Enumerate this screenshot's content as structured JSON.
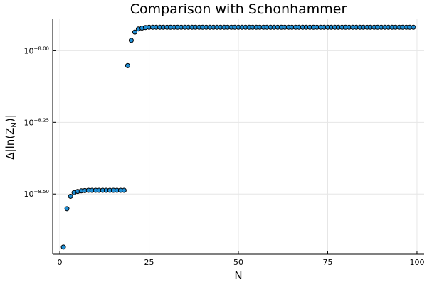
{
  "chart_data": {
    "type": "scatter",
    "title": "Comparison with Schonhammer",
    "xlabel": "N",
    "ylabel": "Δ|ln(Z_N)|",
    "ylabel_main": "Δ|ln(Z",
    "ylabel_sub": "N",
    "ylabel_end": ")|",
    "x_scale": "linear",
    "y_scale": "log10",
    "xlim": [
      -2,
      102
    ],
    "ylim_log10": [
      -8.71,
      -7.89
    ],
    "x_ticks": [
      0,
      25,
      50,
      75,
      100
    ],
    "x_tick_labels": [
      "0",
      "25",
      "50",
      "75",
      "100"
    ],
    "y_ticks_log10": [
      -8.5,
      -8.25,
      -8.0
    ],
    "y_tick_labels": [
      {
        "base": "10",
        "exp": "−8.50"
      },
      {
        "base": "10",
        "exp": "−8.25"
      },
      {
        "base": "10",
        "exp": "−8.00"
      }
    ],
    "grid": true,
    "legend": "none",
    "marker_color": "#1f8fd6",
    "marker_edge_color": "#000000",
    "series": [
      {
        "x": [
          1,
          2,
          3,
          4,
          5,
          6,
          7,
          8,
          9,
          10,
          11,
          12,
          13,
          14,
          15,
          16,
          17,
          18,
          19,
          20,
          21,
          22,
          23,
          24,
          25,
          26,
          27,
          28,
          29,
          30,
          31,
          32,
          33,
          34,
          35,
          36,
          37,
          38,
          39,
          40,
          41,
          42,
          43,
          44,
          45,
          46,
          47,
          48,
          49,
          50,
          51,
          52,
          53,
          54,
          55,
          56,
          57,
          58,
          59,
          60,
          61,
          62,
          63,
          64,
          65,
          66,
          67,
          68,
          69,
          70,
          71,
          72,
          73,
          74,
          75,
          76,
          77,
          78,
          79,
          80,
          81,
          82,
          83,
          84,
          85,
          86,
          87,
          88,
          89,
          90,
          91,
          92,
          93,
          94,
          95,
          96,
          97,
          98,
          99
        ],
        "log10_y": [
          -8.685,
          -8.551,
          -8.508,
          -8.495,
          -8.491,
          -8.489,
          -8.488,
          -8.487,
          -8.487,
          -8.487,
          -8.487,
          -8.487,
          -8.487,
          -8.487,
          -8.487,
          -8.487,
          -8.487,
          -8.487,
          -8.052,
          -7.964,
          -7.935,
          -7.924,
          -7.921,
          -7.919,
          -7.918,
          -7.918,
          -7.918,
          -7.918,
          -7.918,
          -7.918,
          -7.918,
          -7.918,
          -7.918,
          -7.918,
          -7.918,
          -7.918,
          -7.918,
          -7.918,
          -7.918,
          -7.918,
          -7.918,
          -7.918,
          -7.918,
          -7.918,
          -7.918,
          -7.918,
          -7.918,
          -7.918,
          -7.918,
          -7.918,
          -7.918,
          -7.918,
          -7.918,
          -7.918,
          -7.918,
          -7.918,
          -7.918,
          -7.918,
          -7.918,
          -7.918,
          -7.918,
          -7.918,
          -7.918,
          -7.918,
          -7.918,
          -7.918,
          -7.918,
          -7.918,
          -7.918,
          -7.918,
          -7.918,
          -7.918,
          -7.918,
          -7.918,
          -7.918,
          -7.918,
          -7.918,
          -7.918,
          -7.918,
          -7.918,
          -7.918,
          -7.918,
          -7.918,
          -7.918,
          -7.918,
          -7.918,
          -7.918,
          -7.918,
          -7.918,
          -7.918,
          -7.918,
          -7.918,
          -7.918,
          -7.918,
          -7.918,
          -7.918,
          -7.918,
          -7.918,
          -7.918
        ]
      }
    ]
  }
}
